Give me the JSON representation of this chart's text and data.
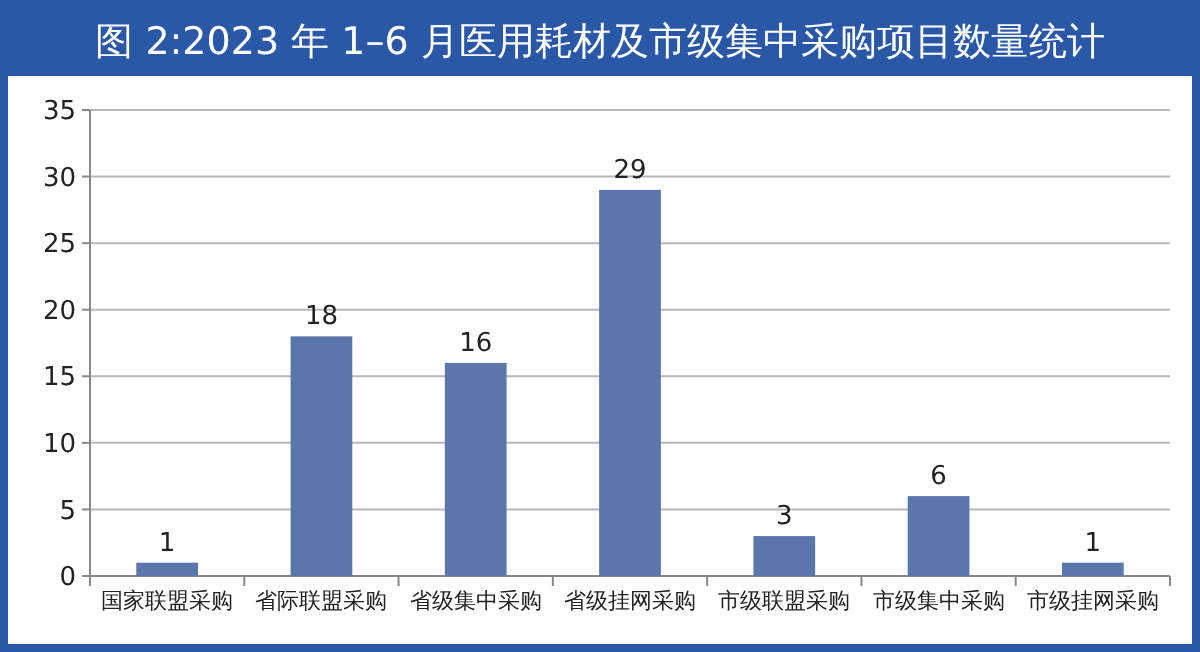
{
  "chart_data": {
    "type": "bar",
    "title": "图 2:2023 年 1–6 月医用耗材及市级集中采购项目数量统计",
    "categories": [
      "国家联盟采购",
      "省际联盟采购",
      "省级集中采购",
      "省级挂网采购",
      "市级联盟采购",
      "市级集中采购",
      "市级挂网采购"
    ],
    "values": [
      1,
      18,
      16,
      29,
      3,
      6,
      1
    ],
    "color": "#5a76ad",
    "ylim": [
      0,
      35
    ],
    "yticks": [
      0,
      5,
      10,
      15,
      20,
      25,
      30,
      35
    ],
    "grid": "y",
    "data_labels": true
  }
}
